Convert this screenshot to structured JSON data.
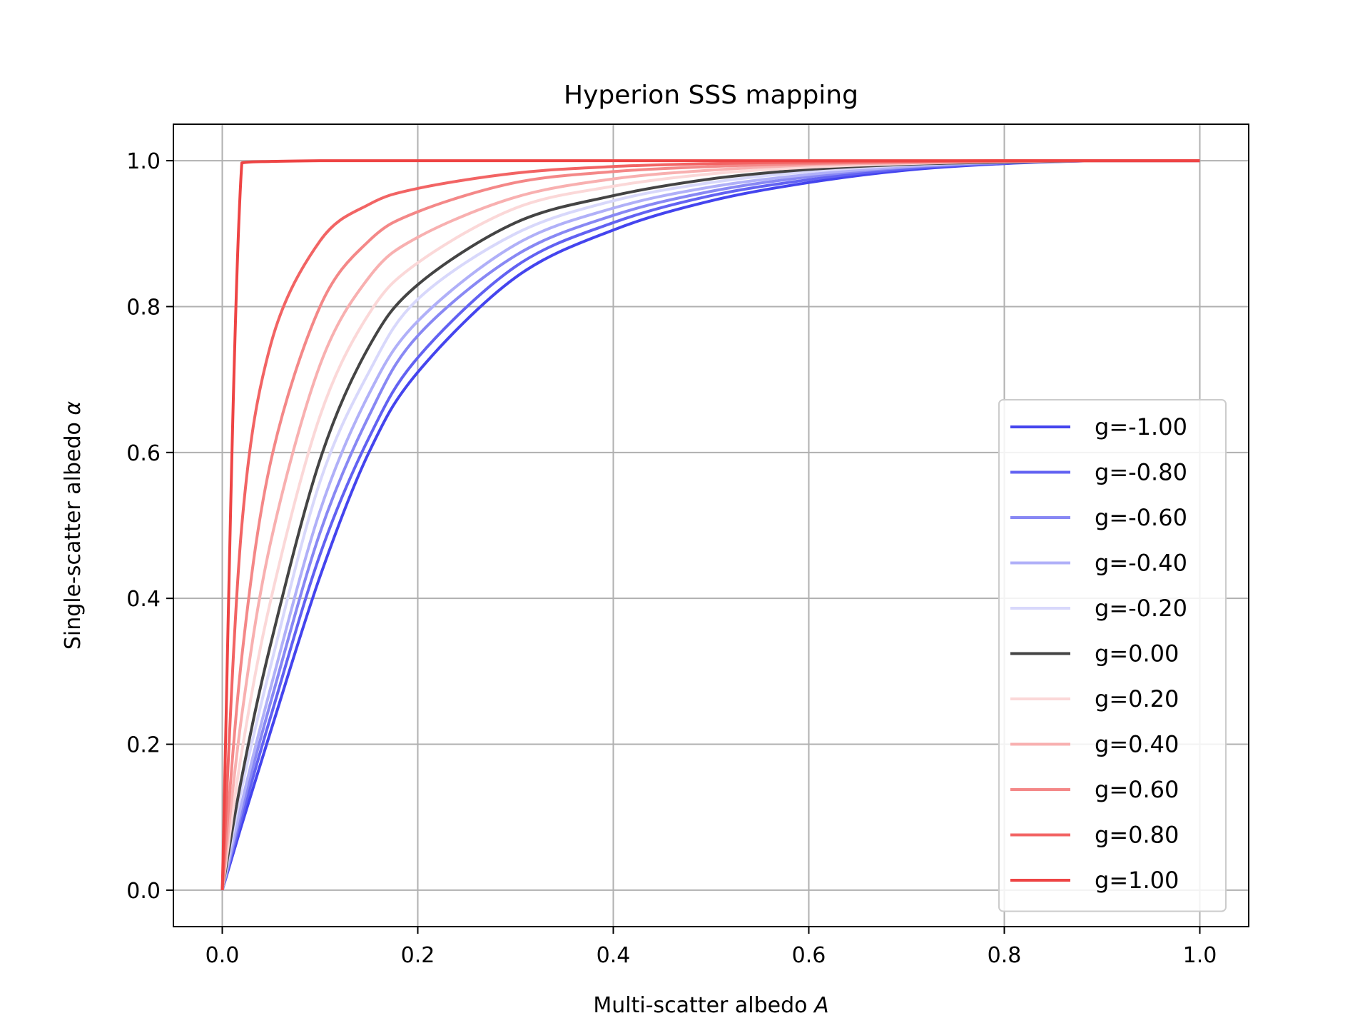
{
  "chart_data": {
    "type": "line",
    "title": "Hyperion SSS mapping",
    "xlabel_text": "Multi-scatter albedo ",
    "xlabel_symbol": "A",
    "ylabel_text": "Single-scatter albedo ",
    "ylabel_symbol": "α",
    "xlim": [
      -0.05,
      1.05
    ],
    "ylim": [
      -0.05,
      1.05
    ],
    "xticks": [
      0.0,
      0.2,
      0.4,
      0.6,
      0.8,
      1.0
    ],
    "xtick_labels": [
      "0.0",
      "0.2",
      "0.4",
      "0.6",
      "0.8",
      "1.0"
    ],
    "yticks": [
      0.0,
      0.2,
      0.4,
      0.6,
      0.8,
      1.0
    ],
    "ytick_labels": [
      "0.0",
      "0.2",
      "0.4",
      "0.6",
      "0.8",
      "1.0"
    ],
    "grid": true,
    "legend_position": "lower right",
    "x": [
      0,
      0.02,
      0.05,
      0.1,
      0.15,
      0.2,
      0.3,
      0.4,
      0.5,
      0.6,
      0.7,
      0.8,
      0.9,
      1.0
    ],
    "series": [
      {
        "name": "g=-1.00",
        "g": -1.0,
        "color": "#4444ee",
        "values": [
          0,
          0.09,
          0.22,
          0.43,
          0.6,
          0.71,
          0.84,
          0.905,
          0.945,
          0.97,
          0.987,
          0.996,
          1.0,
          1.0
        ]
      },
      {
        "name": "g=-0.80",
        "g": -0.8,
        "color": "#6262f2",
        "values": [
          0,
          0.1,
          0.24,
          0.46,
          0.62,
          0.73,
          0.855,
          0.915,
          0.952,
          0.974,
          0.989,
          0.997,
          1.0,
          1.0
        ]
      },
      {
        "name": "g=-0.60",
        "g": -0.6,
        "color": "#8888f4",
        "values": [
          0,
          0.11,
          0.26,
          0.49,
          0.65,
          0.76,
          0.87,
          0.925,
          0.958,
          0.978,
          0.991,
          0.997,
          1.0,
          1.0
        ]
      },
      {
        "name": "g=-0.40",
        "g": -0.4,
        "color": "#b0b0f8",
        "values": [
          0,
          0.12,
          0.28,
          0.52,
          0.68,
          0.78,
          0.885,
          0.935,
          0.964,
          0.981,
          0.992,
          0.998,
          1.0,
          1.0
        ]
      },
      {
        "name": "g=-0.20",
        "g": -0.2,
        "color": "#d8d8fb",
        "values": [
          0,
          0.14,
          0.31,
          0.56,
          0.71,
          0.81,
          0.9,
          0.945,
          0.97,
          0.985,
          0.994,
          0.998,
          1.0,
          1.0
        ]
      },
      {
        "name": "g=0.00",
        "g": 0.0,
        "color": "#444444",
        "values": [
          0,
          0.155,
          0.34,
          0.59,
          0.745,
          0.83,
          0.915,
          0.952,
          0.975,
          0.988,
          0.995,
          0.998,
          1.0,
          1.0
        ]
      },
      {
        "name": "g=0.20",
        "g": 0.2,
        "color": "#fbd8d8",
        "values": [
          0,
          0.19,
          0.4,
          0.65,
          0.79,
          0.86,
          0.935,
          0.965,
          0.982,
          0.991,
          0.996,
          0.999,
          1.0,
          1.0
        ]
      },
      {
        "name": "g=0.40",
        "g": 0.4,
        "color": "#f8b0b0",
        "values": [
          0,
          0.24,
          0.48,
          0.72,
          0.84,
          0.895,
          0.95,
          0.975,
          0.987,
          0.994,
          0.997,
          0.999,
          1.0,
          1.0
        ]
      },
      {
        "name": "g=0.60",
        "g": 0.6,
        "color": "#f48888",
        "values": [
          0,
          0.32,
          0.59,
          0.8,
          0.89,
          0.93,
          0.97,
          0.985,
          0.992,
          0.996,
          0.998,
          0.999,
          1.0,
          1.0
        ]
      },
      {
        "name": "g=0.80",
        "g": 0.8,
        "color": "#f26464",
        "values": [
          0,
          0.5,
          0.75,
          0.89,
          0.94,
          0.962,
          0.983,
          0.992,
          0.996,
          0.998,
          0.999,
          1.0,
          1.0,
          1.0
        ]
      },
      {
        "name": "g=1.00",
        "g": 1.0,
        "color": "#ee4444",
        "values": [
          0,
          0.997,
          0.999,
          1.0,
          1.0,
          1.0,
          1.0,
          1.0,
          1.0,
          1.0,
          1.0,
          1.0,
          1.0,
          1.0
        ]
      }
    ]
  }
}
